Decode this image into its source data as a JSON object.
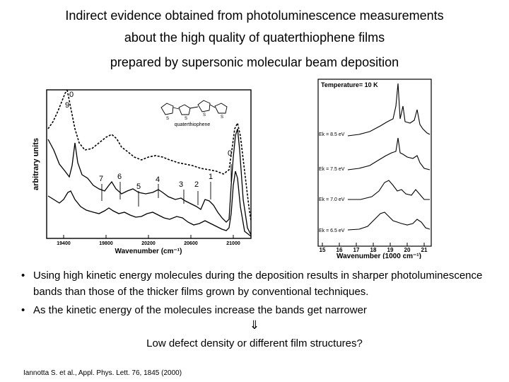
{
  "title": {
    "line1": "Indirect evidence obtained from photoluminescence measurements",
    "line2": "about the high quality of quaterthiophene films",
    "line3": "prepared by supersonic molecular beam deposition"
  },
  "figure_left": {
    "ylabel": "arbitrary units",
    "xlabel": "Wavenumber (cm⁻¹)",
    "xticks": [
      "19400",
      "19800",
      "20200",
      "20600",
      "21000"
    ],
    "molecule_label": "quaterthiophene",
    "peak_labels": [
      "0",
      "9",
      "7",
      "6",
      "5",
      "4",
      "3",
      "2",
      "1",
      "0"
    ]
  },
  "figure_right": {
    "header": "Temperature= 10 K",
    "xlabel": "Wavenumber (1000 cm⁻¹)",
    "xticks": [
      "15",
      "16",
      "17",
      "18",
      "19",
      "20",
      "21"
    ],
    "curves": [
      "Ek = 8.5 eV",
      "Ek = 7.5 eV",
      "Ek = 7.0 eV",
      "Ek = 6.5 eV"
    ]
  },
  "bullets": [
    {
      "marker": "•",
      "text": "Using high kinetic energy molecules during the deposition results in sharper photoluminescence bands than those of the thicker films grown by conventional techniques."
    },
    {
      "marker": "•",
      "text": "As the kinetic energy of the molecules increase the bands get narrower"
    }
  ],
  "arrow": "⇓",
  "conclusion": "Low defect density or different film structures?",
  "reference": "Iannotta S. et al., Appl. Phys. Lett. 76, 1845 (2000)"
}
